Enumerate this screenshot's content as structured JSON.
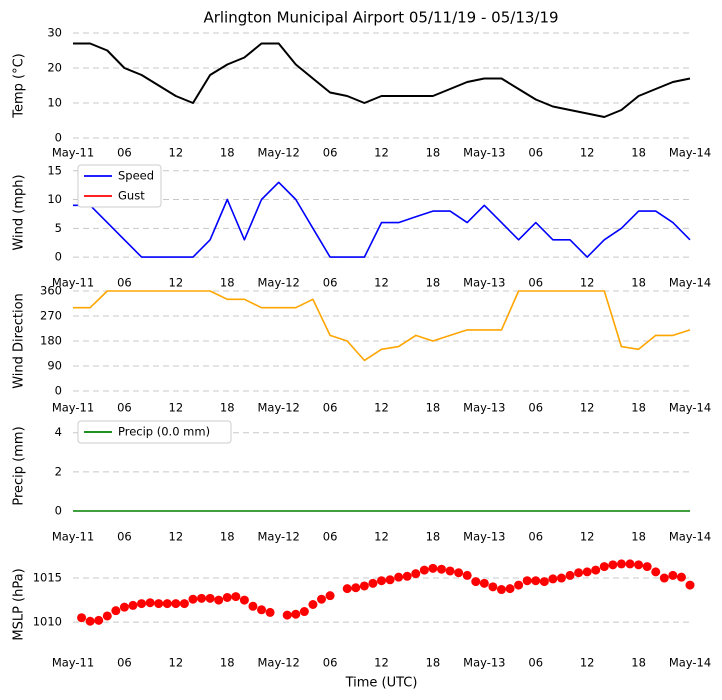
{
  "title": "Arlington Municipal Airport 05/11/19 - 05/13/19",
  "chart_data": [
    {
      "type": "line",
      "ylabel": "Temp (°C)",
      "xlim": [
        0,
        72
      ],
      "ylim": [
        0,
        30
      ],
      "yticks": [
        0,
        10,
        20,
        30
      ],
      "grid": true,
      "xticks": [
        {
          "value": 0,
          "label": "May-11"
        },
        {
          "value": 6,
          "label": "06"
        },
        {
          "value": 12,
          "label": "12"
        },
        {
          "value": 18,
          "label": "18"
        },
        {
          "value": 24,
          "label": "May-12"
        },
        {
          "value": 30,
          "label": "06"
        },
        {
          "value": 36,
          "label": "12"
        },
        {
          "value": 42,
          "label": "18"
        },
        {
          "value": 48,
          "label": "May-13"
        },
        {
          "value": 54,
          "label": "06"
        },
        {
          "value": 60,
          "label": "12"
        },
        {
          "value": 66,
          "label": "18"
        },
        {
          "value": 72,
          "label": "May-14"
        }
      ],
      "x": [
        0,
        2,
        4,
        6,
        8,
        10,
        12,
        14,
        16,
        18,
        20,
        22,
        24,
        26,
        28,
        30,
        32,
        34,
        36,
        38,
        40,
        42,
        44,
        46,
        48,
        50,
        52,
        54,
        56,
        58,
        60,
        62,
        64,
        66,
        68,
        70,
        72
      ],
      "series": [
        {
          "color": "#000000",
          "values": [
            27,
            27,
            25,
            20,
            18,
            15,
            12,
            10,
            18,
            21,
            23,
            27,
            27,
            21,
            17,
            13,
            12,
            10,
            12,
            12,
            12,
            12,
            14,
            16,
            17,
            17,
            14,
            11,
            9,
            8,
            7,
            6,
            8,
            12,
            14,
            16,
            17
          ]
        }
      ]
    },
    {
      "type": "line",
      "ylabel": "Wind (mph)",
      "xlim": [
        0,
        72
      ],
      "ylim": [
        -0.5,
        16
      ],
      "yticks": [
        0,
        5,
        10,
        15
      ],
      "grid": true,
      "legend": "upper left",
      "xticks": [
        {
          "value": 0,
          "label": "May-11"
        },
        {
          "value": 6,
          "label": "06"
        },
        {
          "value": 12,
          "label": "12"
        },
        {
          "value": 18,
          "label": "18"
        },
        {
          "value": 24,
          "label": "May-12"
        },
        {
          "value": 30,
          "label": "06"
        },
        {
          "value": 36,
          "label": "12"
        },
        {
          "value": 42,
          "label": "18"
        },
        {
          "value": 48,
          "label": "May-13"
        },
        {
          "value": 54,
          "label": "06"
        },
        {
          "value": 60,
          "label": "12"
        },
        {
          "value": 66,
          "label": "18"
        },
        {
          "value": 72,
          "label": "May-14"
        }
      ],
      "x": [
        0,
        2,
        4,
        6,
        8,
        10,
        12,
        14,
        16,
        18,
        20,
        22,
        24,
        26,
        28,
        30,
        32,
        34,
        36,
        38,
        40,
        42,
        44,
        46,
        48,
        50,
        52,
        54,
        56,
        58,
        60,
        62,
        64,
        66,
        68,
        70,
        72
      ],
      "series": [
        {
          "name": "Speed",
          "color": "#0000ff",
          "values": [
            9,
            9,
            6,
            3,
            0,
            0,
            0,
            0,
            3,
            10,
            3,
            10,
            13,
            10,
            5,
            0,
            0,
            0,
            6,
            6,
            7,
            8,
            8,
            6,
            9,
            6,
            3,
            6,
            3,
            3,
            0,
            3,
            5,
            8,
            8,
            6,
            3
          ]
        },
        {
          "name": "Gust",
          "color": "#ff0000",
          "values": [
            null,
            null,
            null,
            null,
            null,
            null,
            null,
            null,
            null,
            null,
            null,
            null,
            null,
            null,
            null,
            null,
            null,
            null,
            null,
            null,
            null,
            null,
            null,
            null,
            null,
            null,
            null,
            null,
            null,
            null,
            null,
            null,
            null,
            null,
            null,
            null,
            null
          ]
        }
      ]
    },
    {
      "type": "line",
      "ylabel": "Wind Direction",
      "xlim": [
        0,
        72
      ],
      "ylim": [
        0,
        360
      ],
      "yticks": [
        0,
        90,
        180,
        270,
        360
      ],
      "grid": true,
      "xticks": [
        {
          "value": 0,
          "label": "May-11"
        },
        {
          "value": 6,
          "label": "06"
        },
        {
          "value": 12,
          "label": "12"
        },
        {
          "value": 18,
          "label": "18"
        },
        {
          "value": 24,
          "label": "May-12"
        },
        {
          "value": 30,
          "label": "06"
        },
        {
          "value": 36,
          "label": "12"
        },
        {
          "value": 42,
          "label": "18"
        },
        {
          "value": 48,
          "label": "May-13"
        },
        {
          "value": 54,
          "label": "06"
        },
        {
          "value": 60,
          "label": "12"
        },
        {
          "value": 66,
          "label": "18"
        },
        {
          "value": 72,
          "label": "May-14"
        }
      ],
      "x": [
        0,
        2,
        4,
        6,
        8,
        10,
        12,
        14,
        16,
        18,
        20,
        22,
        24,
        26,
        28,
        30,
        32,
        34,
        36,
        38,
        40,
        42,
        44,
        46,
        48,
        50,
        52,
        54,
        56,
        58,
        60,
        62,
        64,
        66,
        68,
        70,
        72
      ],
      "series": [
        {
          "color": "#ffa500",
          "values": [
            300,
            300,
            360,
            360,
            360,
            360,
            360,
            360,
            360,
            330,
            330,
            300,
            300,
            300,
            330,
            200,
            180,
            110,
            150,
            160,
            200,
            180,
            200,
            220,
            220,
            220,
            360,
            360,
            360,
            360,
            360,
            360,
            160,
            150,
            200,
            200,
            220
          ]
        }
      ]
    },
    {
      "type": "line",
      "ylabel": "Precip (mm)",
      "xlim": [
        0,
        72
      ],
      "ylim": [
        0,
        4.6
      ],
      "yticks": [
        0,
        2,
        4
      ],
      "grid": true,
      "legend": "upper left",
      "xticks": [
        {
          "value": 0,
          "label": "May-11"
        },
        {
          "value": 6,
          "label": "06"
        },
        {
          "value": 12,
          "label": "12"
        },
        {
          "value": 18,
          "label": "18"
        },
        {
          "value": 24,
          "label": "May-12"
        },
        {
          "value": 30,
          "label": "06"
        },
        {
          "value": 36,
          "label": "12"
        },
        {
          "value": 42,
          "label": "18"
        },
        {
          "value": 48,
          "label": "May-13"
        },
        {
          "value": 54,
          "label": "06"
        },
        {
          "value": 60,
          "label": "12"
        },
        {
          "value": 66,
          "label": "18"
        },
        {
          "value": 72,
          "label": "May-14"
        }
      ],
      "x": [
        0,
        2,
        4,
        6,
        8,
        10,
        12,
        14,
        16,
        18,
        20,
        22,
        24,
        26,
        28,
        30,
        32,
        34,
        36,
        38,
        40,
        42,
        44,
        46,
        48,
        50,
        52,
        54,
        56,
        58,
        60,
        62,
        64,
        66,
        68,
        70,
        72
      ],
      "series": [
        {
          "name": "Precip (0.0 mm)",
          "color": "#008000",
          "values": [
            0,
            0,
            0,
            0,
            0,
            0,
            0,
            0,
            0,
            0,
            0,
            0,
            0,
            0,
            0,
            0,
            0,
            0,
            0,
            0,
            0,
            0,
            0,
            0,
            0,
            0,
            0,
            0,
            0,
            0,
            0,
            0,
            0,
            0,
            0,
            0,
            0
          ]
        }
      ]
    },
    {
      "type": "scatter",
      "ylabel": "MSLP (hPa)",
      "xlabel": "Time (UTC)",
      "xlim": [
        0,
        72
      ],
      "ylim": [
        1006.5,
        1017.5
      ],
      "yticks": [
        1010,
        1015
      ],
      "grid": true,
      "xticks": [
        {
          "value": 0,
          "label": "May-11"
        },
        {
          "value": 6,
          "label": "06"
        },
        {
          "value": 12,
          "label": "12"
        },
        {
          "value": 18,
          "label": "18"
        },
        {
          "value": 24,
          "label": "May-12"
        },
        {
          "value": 30,
          "label": "06"
        },
        {
          "value": 36,
          "label": "12"
        },
        {
          "value": 42,
          "label": "18"
        },
        {
          "value": 48,
          "label": "May-13"
        },
        {
          "value": 54,
          "label": "06"
        },
        {
          "value": 60,
          "label": "12"
        },
        {
          "value": 66,
          "label": "18"
        },
        {
          "value": 72,
          "label": "May-14"
        }
      ],
      "x": [
        1,
        2,
        3,
        4,
        5,
        6,
        7,
        8,
        9,
        10,
        11,
        12,
        13,
        14,
        15,
        16,
        17,
        18,
        19,
        20,
        21,
        22,
        23,
        25,
        26,
        27,
        28,
        29,
        30,
        32,
        33,
        34,
        35,
        36,
        37,
        38,
        39,
        40,
        41,
        42,
        43,
        44,
        45,
        46,
        47,
        48,
        49,
        50,
        51,
        52,
        53,
        54,
        55,
        56,
        57,
        58,
        59,
        60,
        61,
        62,
        63,
        64,
        65,
        66,
        67,
        68,
        69,
        70,
        71,
        72
      ],
      "series": [
        {
          "color": "#ff0000",
          "values": [
            1010.5,
            1010.1,
            1010.2,
            1010.7,
            1011.3,
            1011.7,
            1011.9,
            1012.1,
            1012.2,
            1012.1,
            1012.1,
            1012.1,
            1012.1,
            1012.6,
            1012.7,
            1012.7,
            1012.5,
            1012.8,
            1012.9,
            1012.5,
            1011.8,
            1011.4,
            1011.1,
            1010.8,
            1010.9,
            1011.2,
            1012.0,
            1012.6,
            1013.0,
            1013.8,
            1013.9,
            1014.1,
            1014.4,
            1014.7,
            1014.8,
            1015.1,
            1015.2,
            1015.5,
            1015.9,
            1016.1,
            1016.0,
            1015.8,
            1015.6,
            1015.3,
            1014.6,
            1014.4,
            1014.0,
            1013.7,
            1013.8,
            1014.2,
            1014.7,
            1014.7,
            1014.6,
            1014.9,
            1015.0,
            1015.3,
            1015.6,
            1015.7,
            1015.9,
            1016.3,
            1016.5,
            1016.6,
            1016.6,
            1016.5,
            1016.3,
            1015.7,
            1015.0,
            1015.3,
            1015.1,
            1014.2
          ]
        }
      ]
    }
  ]
}
